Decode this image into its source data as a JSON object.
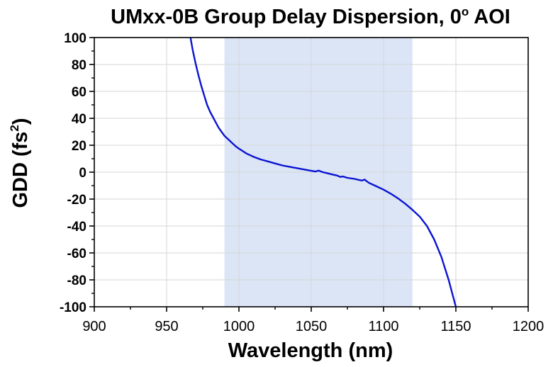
{
  "chart_data": {
    "type": "line",
    "title": "UMxx-0B Group Delay Dispersion, 0",
    "title_suffix": "o",
    "title_end": " AOI",
    "xlabel": "Wavelength (nm)",
    "ylabel_main": "GDD (fs",
    "ylabel_sup": "2",
    "ylabel_end": ")",
    "xlim": [
      900,
      1200
    ],
    "ylim": [
      -100,
      100
    ],
    "x_ticks": [
      900,
      950,
      1000,
      1050,
      1100,
      1150,
      1200
    ],
    "y_ticks": [
      -100,
      -80,
      -60,
      -40,
      -20,
      0,
      20,
      40,
      60,
      80,
      100
    ],
    "grid": true,
    "highlight_band": {
      "x_start": 990,
      "x_end": 1120,
      "color": "#dbe5f6"
    },
    "series": [
      {
        "color": "#0a14d2",
        "x": [
          966.5,
          968,
          970,
          972,
          974,
          976,
          978,
          980,
          983,
          986,
          988,
          990,
          992,
          995,
          998,
          1000,
          1005,
          1010,
          1015,
          1020,
          1025,
          1030,
          1035,
          1040,
          1045,
          1050,
          1053,
          1055,
          1058,
          1060,
          1065,
          1068,
          1070,
          1072,
          1075,
          1080,
          1083,
          1085,
          1087,
          1088,
          1090,
          1095,
          1100,
          1105,
          1110,
          1115,
          1120,
          1125,
          1130,
          1135,
          1140,
          1145,
          1148,
          1150
        ],
        "y": [
          100,
          91,
          81,
          72,
          64,
          57,
          50,
          45,
          39,
          33,
          30,
          27,
          25,
          22,
          19,
          17.5,
          14,
          11.5,
          9.5,
          8,
          6.5,
          5,
          4,
          3,
          2,
          1,
          0.5,
          1.2,
          0,
          -0.5,
          -1.8,
          -2.5,
          -3.5,
          -3.2,
          -4.2,
          -5,
          -5.8,
          -6.2,
          -5.5,
          -6.5,
          -8,
          -10.5,
          -13,
          -16,
          -19.5,
          -23.5,
          -28,
          -33,
          -40,
          -50,
          -63,
          -80,
          -92,
          -100
        ]
      }
    ]
  }
}
